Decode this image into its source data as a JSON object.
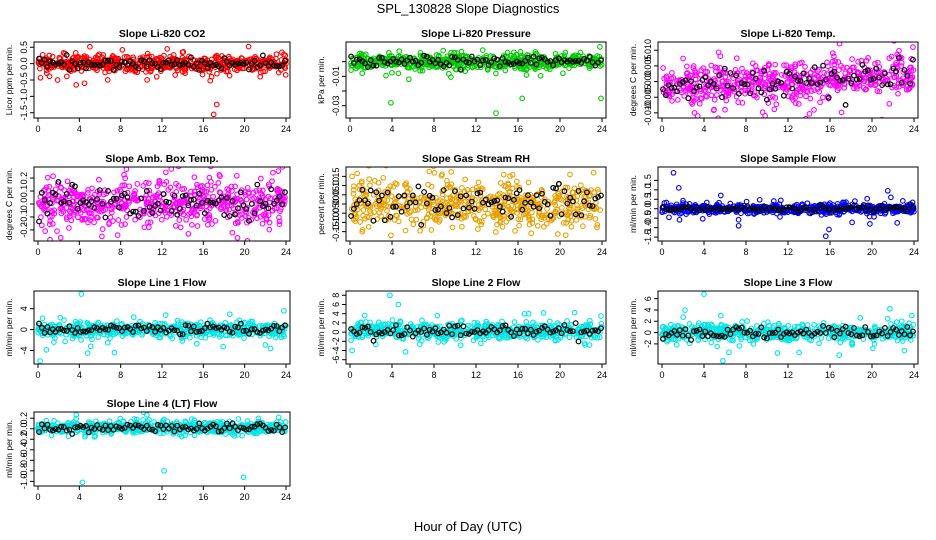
{
  "figure": {
    "title": "SPL_130828  Slope Diagnostics",
    "xlabel": "Hour of Day (UTC)"
  },
  "chart_data": [
    {
      "type": "scatter",
      "title": "Slope Li-820 CO2",
      "ylabel": "Licor ppm per min.",
      "xlim": [
        0,
        24
      ],
      "xticks": [
        0,
        4,
        8,
        12,
        16,
        20,
        24
      ],
      "ylim": [
        -1.6,
        0.6
      ],
      "yticks": [
        -1.5,
        -1.0,
        -0.5,
        0.0,
        0.5
      ],
      "ytick_labels": [
        "-1.5",
        "-1.0",
        "-0.5",
        "0.0",
        "0.5"
      ],
      "color": "#ff0000",
      "baseline": 0.0,
      "spread": 0.12,
      "outliers": [
        [
          1.9,
          -0.5
        ],
        [
          4.5,
          -0.6
        ],
        [
          16.8,
          -0.4
        ],
        [
          17.3,
          -1.25
        ],
        [
          17.0,
          -1.55
        ],
        [
          21.5,
          -0.4
        ],
        [
          1.1,
          0.25
        ],
        [
          12.5,
          0.45
        ]
      ],
      "series": [
        {
          "values": "dense scatter, 1-min resolution"
        },
        {
          "values": "hourly means (black)"
        }
      ]
    },
    {
      "type": "scatter",
      "title": "Slope Li-820 Pressure",
      "ylabel": "kPa per min.",
      "xlim": [
        0,
        24
      ],
      "xticks": [
        0,
        4,
        8,
        12,
        16,
        20,
        24
      ],
      "ylim": [
        -0.037,
        0.012
      ],
      "yticks": [
        -0.03,
        -0.02,
        -0.01,
        0.0
      ],
      "ytick_labels": [
        "-0.03",
        "",
        "-0.01",
        ""
      ],
      "color": "#00cc00",
      "baseline": 0.0,
      "spread": 0.0025,
      "outliers": [
        [
          3.9,
          -0.028
        ],
        [
          13.9,
          -0.035
        ],
        [
          16.4,
          -0.025
        ],
        [
          23.9,
          -0.025
        ],
        [
          1.5,
          0.005
        ],
        [
          5.6,
          -0.012
        ],
        [
          4.6,
          -0.008
        ],
        [
          23.8,
          0.01
        ]
      ],
      "series": [
        {
          "values": "dense scatter, 1-min resolution"
        },
        {
          "values": "hourly means (black)"
        }
      ]
    },
    {
      "type": "scatter",
      "title": "Slope Li-820 Temp.",
      "ylabel": "degrees C per min.",
      "xlim": [
        0,
        24
      ],
      "xticks": [
        0,
        4,
        8,
        12,
        16,
        20,
        24
      ],
      "ylim": [
        -0.011,
        0.012
      ],
      "yticks": [
        -0.01,
        -0.005,
        0.0,
        0.005,
        0.01
      ],
      "ytick_labels": [
        "-0.010",
        "-0.005",
        "0.000",
        "0.005",
        "0.010"
      ],
      "color": "#ff00ff",
      "baseline": 0.0,
      "spread": 0.0032,
      "trend": 0.00015,
      "outliers": [
        [
          3.1,
          -0.01
        ],
        [
          3.4,
          -0.011
        ],
        [
          23.9,
          0.011
        ],
        [
          6.0,
          -0.009
        ]
      ],
      "series": [
        {
          "values": "dense scatter, 1-min resolution"
        },
        {
          "values": "hourly means (black)"
        }
      ]
    },
    {
      "type": "scatter",
      "title": "Slope Amb. Box Temp.",
      "ylabel": "degrees C per min.",
      "xlim": [
        0,
        24
      ],
      "xticks": [
        0,
        4,
        8,
        12,
        16,
        20,
        24
      ],
      "ylim": [
        -0.27,
        0.27
      ],
      "yticks": [
        -0.2,
        -0.1,
        0.0,
        0.1,
        0.2
      ],
      "ytick_labels": [
        "-0.2",
        "-0.1",
        "0.0",
        "0.1",
        "0.2"
      ],
      "color": "#ff00ff",
      "baseline": 0.0,
      "spread": 0.085,
      "outliers": [
        [
          2.2,
          -0.26
        ],
        [
          7.7,
          -0.24
        ],
        [
          12.9,
          0.27
        ]
      ],
      "series": [
        {
          "values": "dense scatter, 1-min resolution"
        },
        {
          "values": "hourly means (black)"
        }
      ]
    },
    {
      "type": "scatter",
      "title": "Slope Gas Stream RH",
      "ylabel": "percent per min.",
      "xlim": [
        0,
        24
      ],
      "xticks": [
        0,
        4,
        8,
        12,
        16,
        20,
        24
      ],
      "ylim": [
        -0.19,
        0.19
      ],
      "yticks": [
        -0.15,
        -0.1,
        -0.05,
        0.0,
        0.05,
        0.1,
        0.15
      ],
      "ytick_labels": [
        "-0.15",
        "-0.10",
        "-0.05",
        "0.00",
        "0.05",
        "0.10",
        "0.15"
      ],
      "color": "#e8a000",
      "baseline": 0.0,
      "spread": 0.065,
      "outliers": [
        [
          3.9,
          -0.17
        ],
        [
          23.2,
          0.17
        ],
        [
          0.2,
          0.15
        ]
      ],
      "series": [
        {
          "values": "dense scatter, 1-min resolution"
        },
        {
          "values": "hourly means (black)"
        }
      ]
    },
    {
      "type": "scatter",
      "title": "Slope Sample Flow",
      "ylabel": "ml/min per min.",
      "xlim": [
        0,
        24
      ],
      "xticks": [
        0,
        4,
        8,
        12,
        16,
        20,
        24
      ],
      "ylim": [
        -1.6,
        2.1
      ],
      "yticks": [
        -1.5,
        -1.0,
        -0.5,
        0.0,
        0.5,
        1.0,
        1.5
      ],
      "ytick_labels": [
        "-1.5",
        "-1.0",
        "-0.5",
        "0.0",
        "0.5",
        "1.0",
        "1.5"
      ],
      "color": "#0000ff",
      "baseline": 0.0,
      "spread": 0.12,
      "outliers": [
        [
          1.1,
          1.9
        ],
        [
          1.6,
          1.1
        ],
        [
          15.6,
          -1.45
        ],
        [
          15.9,
          -1.1
        ],
        [
          21.5,
          0.95
        ],
        [
          21.8,
          0.6
        ],
        [
          7.3,
          -0.9
        ],
        [
          19.8,
          -0.8
        ],
        [
          22.4,
          -0.75
        ],
        [
          5.6,
          0.7
        ]
      ],
      "series": [
        {
          "values": "dense scatter, 1-min resolution"
        },
        {
          "values": "hourly means (black)"
        }
      ]
    },
    {
      "type": "scatter",
      "title": "Slope Line 1 Flow",
      "ylabel": "ml/min per min.",
      "xlim": [
        0,
        24
      ],
      "xticks": [
        0,
        4,
        8,
        12,
        16,
        20,
        24
      ],
      "ylim": [
        -6.2,
        7
      ],
      "yticks": [
        -4,
        0,
        4
      ],
      "ytick_labels": [
        "-4",
        "0",
        "4"
      ],
      "color": "#00e5e5",
      "baseline": 0.0,
      "spread": 0.7,
      "outliers": [
        [
          4.2,
          6.8
        ],
        [
          4.8,
          -4.5
        ],
        [
          5.1,
          -3.2
        ],
        [
          0.2,
          -6.0
        ],
        [
          23.8,
          3.6
        ],
        [
          7.4,
          -4.4
        ],
        [
          22.5,
          -3.6
        ]
      ],
      "series": [
        {
          "values": "dense scatter, 1-min resolution"
        },
        {
          "values": "hourly means (black)"
        }
      ]
    },
    {
      "type": "scatter",
      "title": "Slope Line 2 Flow",
      "ylabel": "ml/min per min.",
      "xlim": [
        0,
        24
      ],
      "xticks": [
        0,
        4,
        8,
        12,
        16,
        20,
        24
      ],
      "ylim": [
        -6.5,
        8.5
      ],
      "yticks": [
        -6,
        -4,
        -2,
        0,
        2,
        4,
        6,
        8
      ],
      "ytick_labels": [
        "-6",
        "-4",
        "-2",
        "0",
        "2",
        "4",
        "6",
        "8"
      ],
      "color": "#00e5e5",
      "baseline": 0.3,
      "spread": 0.9,
      "outliers": [
        [
          3.8,
          8.0
        ],
        [
          4.6,
          6.0
        ],
        [
          5.3,
          -4.3
        ],
        [
          0.2,
          -4.0
        ],
        [
          22.4,
          -2.8
        ],
        [
          23.9,
          3.5
        ]
      ],
      "series": [
        {
          "values": "dense scatter, 1-min resolution"
        },
        {
          "values": "hourly means (black)"
        }
      ]
    },
    {
      "type": "scatter",
      "title": "Slope Line 3 Flow",
      "ylabel": "ml/min per min.",
      "xlim": [
        0,
        24
      ],
      "xticks": [
        0,
        4,
        8,
        12,
        16,
        20,
        24
      ],
      "ylim": [
        -5.2,
        7
      ],
      "yticks": [
        -2,
        0,
        2,
        4,
        6
      ],
      "ytick_labels": [
        "-2",
        "0",
        "2",
        "4",
        "6"
      ],
      "color": "#00e5e5",
      "baseline": 0.0,
      "spread": 0.8,
      "outliers": [
        [
          4.0,
          6.8
        ],
        [
          5.8,
          -5.0
        ],
        [
          21.7,
          4.2
        ],
        [
          23.8,
          3.0
        ],
        [
          5.6,
          3.0
        ],
        [
          11.0,
          -3.6
        ]
      ],
      "series": [
        {
          "values": "dense scatter, 1-min resolution"
        },
        {
          "values": "hourly means (black)"
        }
      ]
    },
    {
      "type": "scatter",
      "title": "Slope Line 4 (LT) Flow",
      "ylabel": "ml/min per min.",
      "xlim": [
        0,
        24
      ],
      "xticks": [
        0,
        4,
        8,
        12,
        16,
        20,
        24
      ],
      "ylim": [
        -1.05,
        0.28
      ],
      "yticks": [
        -1.0,
        -0.8,
        -0.6,
        -0.4,
        -0.2,
        0.0,
        0.2
      ],
      "ytick_labels": [
        "-1.0",
        "-0.8",
        "-0.6",
        "-0.4",
        "-0.2",
        "0.0",
        "0.2"
      ],
      "color": "#00e5e5",
      "baseline": 0.02,
      "spread": 0.055,
      "outliers": [
        [
          4.3,
          -1.02
        ],
        [
          12.2,
          -0.8
        ],
        [
          19.9,
          -0.92
        ]
      ],
      "series": [
        {
          "values": "dense scatter, 1-min resolution"
        },
        {
          "values": "hourly means (black)"
        }
      ]
    }
  ]
}
